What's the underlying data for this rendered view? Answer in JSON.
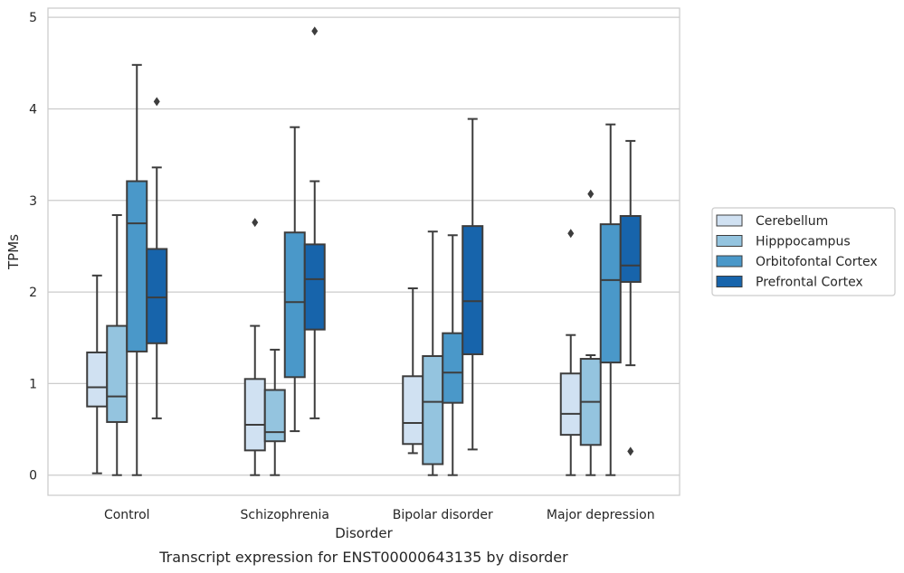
{
  "chart_data": {
    "type": "box",
    "title": "",
    "caption": "Transcript expression for ENST00000643135 by disorder",
    "xlabel": "Disorder",
    "ylabel": "TPMs",
    "ylim": [
      -0.22,
      5.1
    ],
    "yticks": [
      "0",
      "1",
      "2",
      "3",
      "4",
      "5"
    ],
    "grid": "horizontal",
    "legend_position": "right",
    "categories": [
      "Control",
      "Schizophrenia",
      "Bipolar disorder",
      "Major depression"
    ],
    "series": [
      {
        "name": "Cerebellum",
        "color": "#d0e1f2",
        "boxes": [
          {
            "whisker_low": 0.02,
            "q1": 0.75,
            "median": 0.96,
            "q3": 1.34,
            "whisker_high": 2.18,
            "outliers": []
          },
          {
            "whisker_low": 0.0,
            "q1": 0.27,
            "median": 0.55,
            "q3": 1.05,
            "whisker_high": 1.63,
            "outliers": [
              2.76
            ]
          },
          {
            "whisker_low": 0.24,
            "q1": 0.34,
            "median": 0.57,
            "q3": 1.08,
            "whisker_high": 2.04,
            "outliers": []
          },
          {
            "whisker_low": 0.0,
            "q1": 0.44,
            "median": 0.67,
            "q3": 1.11,
            "whisker_high": 1.53,
            "outliers": [
              2.64
            ]
          }
        ]
      },
      {
        "name": "Hipppocampus",
        "color": "#94c4df",
        "boxes": [
          {
            "whisker_low": 0.0,
            "q1": 0.58,
            "median": 0.86,
            "q3": 1.63,
            "whisker_high": 2.84,
            "outliers": []
          },
          {
            "whisker_low": 0.0,
            "q1": 0.37,
            "median": 0.47,
            "q3": 0.93,
            "whisker_high": 1.37,
            "outliers": []
          },
          {
            "whisker_low": 0.0,
            "q1": 0.12,
            "median": 0.8,
            "q3": 1.3,
            "whisker_high": 2.66,
            "outliers": []
          },
          {
            "whisker_low": 0.0,
            "q1": 0.33,
            "median": 0.8,
            "q3": 1.27,
            "whisker_high": 1.31,
            "outliers": [
              3.07
            ]
          }
        ]
      },
      {
        "name": "Orbitofontal Cortex",
        "color": "#4a98c9",
        "boxes": [
          {
            "whisker_low": 0.0,
            "q1": 1.35,
            "median": 2.75,
            "q3": 3.21,
            "whisker_high": 4.48,
            "outliers": []
          },
          {
            "whisker_low": 0.48,
            "q1": 1.07,
            "median": 1.89,
            "q3": 2.65,
            "whisker_high": 3.8,
            "outliers": []
          },
          {
            "whisker_low": 0.0,
            "q1": 0.79,
            "median": 1.12,
            "q3": 1.55,
            "whisker_high": 2.62,
            "outliers": []
          },
          {
            "whisker_low": 0.0,
            "q1": 1.23,
            "median": 2.13,
            "q3": 2.74,
            "whisker_high": 3.83,
            "outliers": []
          }
        ]
      },
      {
        "name": "Prefrontal Cortex",
        "color": "#1764ab",
        "boxes": [
          {
            "whisker_low": 0.62,
            "q1": 1.44,
            "median": 1.94,
            "q3": 2.47,
            "whisker_high": 3.36,
            "outliers": [
              4.08
            ]
          },
          {
            "whisker_low": 0.62,
            "q1": 1.59,
            "median": 2.14,
            "q3": 2.52,
            "whisker_high": 3.21,
            "outliers": [
              4.85
            ]
          },
          {
            "whisker_low": 0.28,
            "q1": 1.32,
            "median": 1.9,
            "q3": 2.72,
            "whisker_high": 3.89,
            "outliers": []
          },
          {
            "whisker_low": 1.2,
            "q1": 2.11,
            "median": 2.29,
            "q3": 2.83,
            "whisker_high": 3.65,
            "outliers": [
              0.26
            ]
          }
        ]
      }
    ]
  }
}
